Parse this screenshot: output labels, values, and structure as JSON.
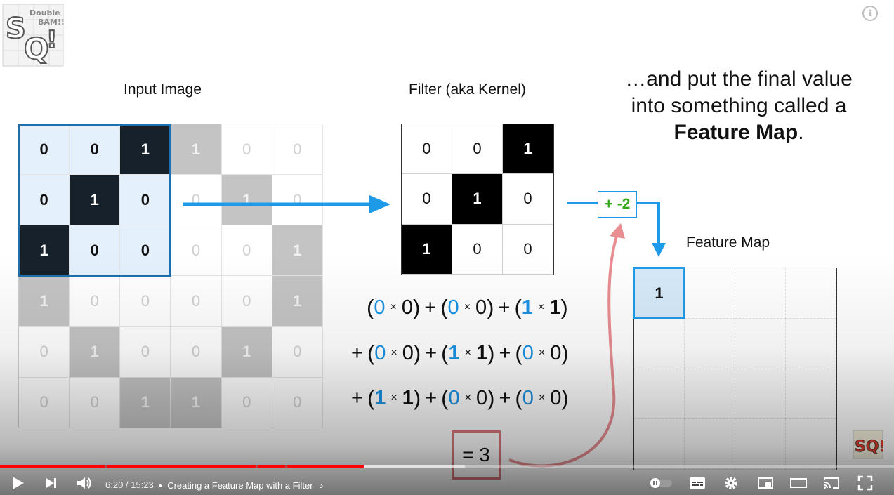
{
  "slide": {
    "input_title": "Input Image",
    "filter_title": "Filter (aka Kernel)",
    "feature_map_title": "Feature Map",
    "caption": {
      "line1": "…and put the final value",
      "line2": "into something called a",
      "line3_bold": "Feature Map",
      "line3_end": "."
    },
    "input_image": [
      [
        "0",
        "0",
        "1",
        "1",
        "0",
        "0"
      ],
      [
        "0",
        "1",
        "0",
        "0",
        "1",
        "0"
      ],
      [
        "1",
        "0",
        "0",
        "0",
        "0",
        "1"
      ],
      [
        "1",
        "0",
        "0",
        "0",
        "0",
        "1"
      ],
      [
        "0",
        "1",
        "0",
        "0",
        "1",
        "0"
      ],
      [
        "0",
        "0",
        "1",
        "1",
        "0",
        "0"
      ]
    ],
    "filter": [
      [
        "0",
        "0",
        "1"
      ],
      [
        "0",
        "1",
        "0"
      ],
      [
        "1",
        "0",
        "0"
      ]
    ],
    "feature_map_first": "1",
    "calculation": {
      "rows": [
        [
          [
            "0",
            "0"
          ],
          [
            "0",
            "0"
          ],
          [
            "1",
            "1"
          ]
        ],
        [
          [
            "0",
            "0"
          ],
          [
            "1",
            "1"
          ],
          [
            "0",
            "0"
          ]
        ],
        [
          [
            "1",
            "1"
          ],
          [
            "0",
            "0"
          ],
          [
            "0",
            "0"
          ]
        ]
      ],
      "times": "×",
      "plus": "+",
      "result": "= 3"
    },
    "bias": "+ -2"
  },
  "player": {
    "time": "6:20 / 15:23",
    "separator": "•",
    "chapter": "Creating a Feature Map with a Filter",
    "progress_played": 0.407,
    "progress_loaded": 0.52,
    "info_label": "i"
  },
  "colors": {
    "highlight_blue": "#1993e6",
    "bias_green": "#33a91a",
    "result_red": "#d9767b",
    "progress_red": "#ff0000"
  }
}
